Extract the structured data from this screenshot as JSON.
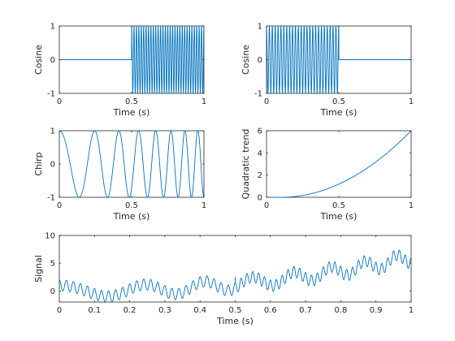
{
  "colors": {
    "series": "#0072bd",
    "axis": "#262626"
  },
  "chart_data": [
    {
      "type": "line",
      "xlabel": "Time (s)",
      "ylabel": "Cosine",
      "xlim": [
        0,
        1
      ],
      "ylim": [
        -1,
        1
      ],
      "xticks": [
        0,
        0.5,
        1
      ],
      "xtick_labels": [
        "0",
        "0.5",
        "1"
      ],
      "yticks": [
        -1,
        0,
        1
      ],
      "ytick_labels": [
        "-1",
        "0",
        "1"
      ],
      "signal": "Cosine burst: flat at 0 for t < 0.5 s, then oscillates between -1 and 1 (~60 Hz) for 0.5 ≤ t ≤ 1 s",
      "series": [
        {
          "kind": "cosine_gated",
          "amplitude": 1,
          "frequency_hz": 60,
          "active_from_s": 0.5,
          "active_to_s": 1
        }
      ]
    },
    {
      "type": "line",
      "xlabel": "Time (s)",
      "ylabel": "Cosine",
      "xlim": [
        0,
        1
      ],
      "ylim": [
        -1,
        1
      ],
      "xticks": [
        0,
        0.5,
        1
      ],
      "xtick_labels": [
        "0",
        "0.5",
        "1"
      ],
      "yticks": [
        -1,
        0,
        1
      ],
      "ytick_labels": [
        "-1",
        "0",
        "1"
      ],
      "signal": "Cosine burst: oscillates between -1 and 1 (~50 Hz) for 0 ≤ t < 0.5 s, then flat at 0",
      "series": [
        {
          "kind": "cosine_gated",
          "amplitude": 1,
          "frequency_hz": 50,
          "active_from_s": 0,
          "active_to_s": 0.5
        }
      ]
    },
    {
      "type": "line",
      "xlabel": "Time (s)",
      "ylabel": "Chirp",
      "xlim": [
        0,
        1
      ],
      "ylim": [
        -1,
        1
      ],
      "xticks": [
        0,
        0.5,
        1
      ],
      "xtick_labels": [
        "0",
        "0.5",
        "1"
      ],
      "yticks": [
        -1,
        0,
        1
      ],
      "ytick_labels": [
        "-1",
        "0",
        "1"
      ],
      "signal": "Chirp: cos(2π(f0·t + k·t²/2)) starting at 1, frequency increasing from ~3 Hz to ~12 Hz",
      "series": [
        {
          "kind": "chirp",
          "amplitude": 1,
          "f0_hz": 3,
          "f1_hz": 12
        }
      ]
    },
    {
      "type": "line",
      "xlabel": "Time (s)",
      "ylabel": "Quadratic trend",
      "xlim": [
        0,
        1
      ],
      "ylim": [
        0,
        6
      ],
      "xticks": [
        0,
        0.5,
        1
      ],
      "xtick_labels": [
        "0",
        "0.5",
        "1"
      ],
      "yticks": [
        0,
        2,
        4,
        6
      ],
      "ytick_labels": [
        "0",
        "2",
        "4",
        "6"
      ],
      "signal": "Quadratic trend, 0 until t ≈ 0.1 s then rising to 6 at t = 1 s",
      "series": [
        {
          "kind": "quadratic",
          "start_s": 0.1,
          "end_value": 6
        }
      ]
    },
    {
      "type": "line",
      "xlabel": "Time (s)",
      "ylabel": "Signal",
      "xlim": [
        0,
        1
      ],
      "ylim": [
        -2,
        10
      ],
      "xticks": [
        0,
        0.1,
        0.2,
        0.3,
        0.4,
        0.5,
        0.6,
        0.7,
        0.8,
        0.9,
        1
      ],
      "xtick_labels": [
        "0",
        "0.1",
        "0.2",
        "0.3",
        "0.4",
        "0.5",
        "0.6",
        "0.7",
        "0.8",
        "0.9",
        "1"
      ],
      "yticks": [
        0,
        5,
        10
      ],
      "ytick_labels": [
        "0",
        "5",
        "10"
      ],
      "signal": "Sum of the four signals above: oscillating around a rising quadratic trend, from about 0 near t = 0 to about 7 at t = 1 s",
      "series": [
        {
          "kind": "sum_of_above"
        }
      ]
    }
  ]
}
